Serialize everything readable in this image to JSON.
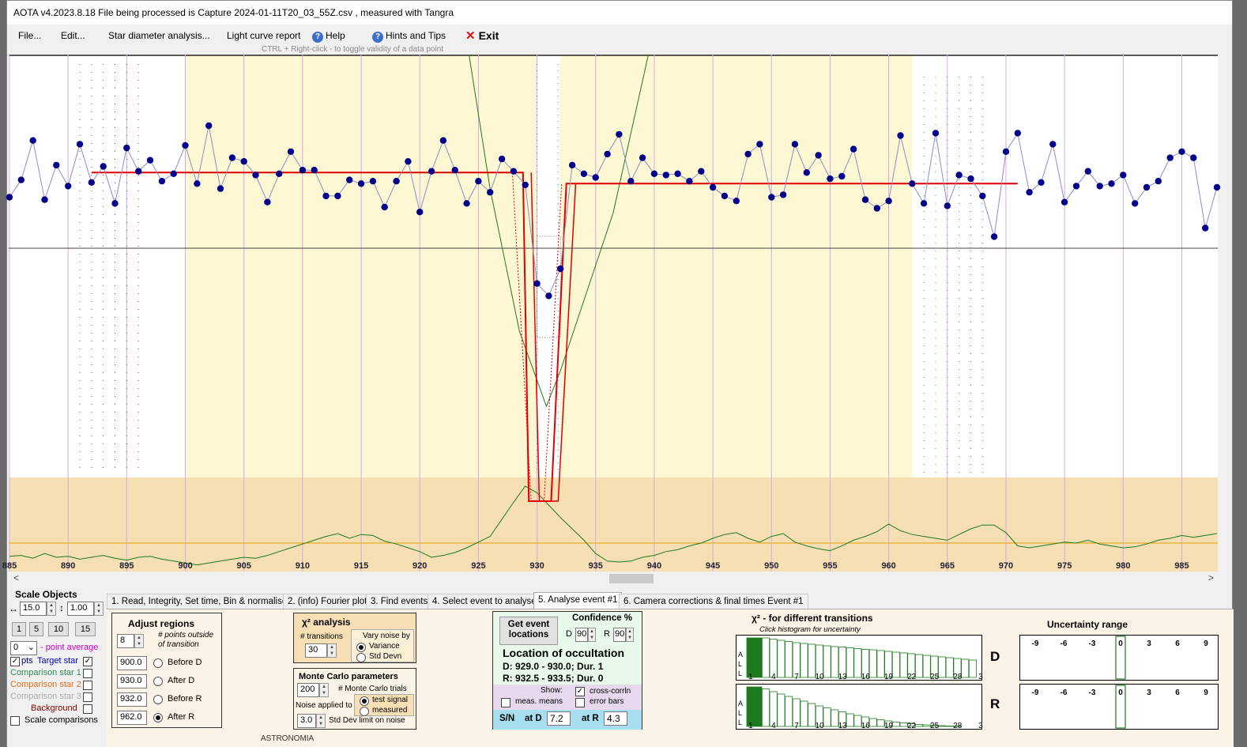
{
  "window": {
    "title": "AOTA v4.2023.8.18    File being processed is  Capture 2024-01-11T20_03_55Z.csv ,  measured with Tangra"
  },
  "menu": {
    "file": "File...",
    "edit": "Edit...",
    "star_diameter": "Star diameter analysis...",
    "light_curve": "Light curve report",
    "help": "Help",
    "hints": "Hints and Tips",
    "exit": "Exit"
  },
  "hint_text": "CTRL + Right-click   -   to toggle validity of a data point",
  "chart_data": {
    "type": "line",
    "x_ticks": [
      "885",
      "890",
      "895",
      "900",
      "905",
      "910",
      "915",
      "920",
      "925",
      "930",
      "935",
      "940",
      "945",
      "950",
      "955",
      "960",
      "965",
      "970",
      "975",
      "980",
      "985"
    ],
    "xlim": [
      885,
      988
    ],
    "y_normalized": true,
    "series": [
      {
        "name": "Target star",
        "color": "#00008b",
        "x": [
          885,
          886,
          887,
          888,
          889,
          890,
          891,
          892,
          893,
          894,
          895,
          896,
          897,
          898,
          899,
          900,
          901,
          902,
          903,
          904,
          905,
          906,
          907,
          908,
          909,
          910,
          911,
          912,
          913,
          914,
          915,
          916,
          917,
          918,
          919,
          920,
          921,
          922,
          923,
          924,
          925,
          926,
          927,
          928,
          929,
          930,
          931,
          932,
          933,
          934,
          935,
          936,
          937,
          938,
          939,
          940,
          941,
          942,
          943,
          944,
          945,
          946,
          947,
          948,
          949,
          950,
          951,
          952,
          953,
          954,
          955,
          956,
          957,
          958,
          959,
          960,
          961,
          962,
          963,
          964,
          965,
          966,
          967,
          968,
          969,
          970,
          971,
          972,
          973,
          974,
          975,
          976,
          977,
          978,
          979,
          980,
          981,
          982,
          983,
          984,
          985,
          986,
          987,
          988
        ],
        "y": [
          0.42,
          0.56,
          0.88,
          0.4,
          0.68,
          0.51,
          0.85,
          0.54,
          0.67,
          0.37,
          0.82,
          0.63,
          0.72,
          0.55,
          0.61,
          0.84,
          0.53,
          1.0,
          0.49,
          0.74,
          0.71,
          0.6,
          0.38,
          0.61,
          0.79,
          0.64,
          0.64,
          0.43,
          0.43,
          0.56,
          0.53,
          0.55,
          0.34,
          0.55,
          0.71,
          0.3,
          0.63,
          0.88,
          0.64,
          0.37,
          0.55,
          0.46,
          0.73,
          0.63,
          0.52,
          -0.28,
          -0.38,
          -0.16,
          0.68,
          0.61,
          0.58,
          0.77,
          0.93,
          0.55,
          0.74,
          0.61,
          0.6,
          0.61,
          0.55,
          0.63,
          0.5,
          0.43,
          0.39,
          0.77,
          0.85,
          0.42,
          0.44,
          0.85,
          0.62,
          0.76,
          0.57,
          0.59,
          0.81,
          0.4,
          0.33,
          0.39,
          0.92,
          0.53,
          0.37,
          0.94,
          0.35,
          0.6,
          0.57,
          0.43,
          0.1,
          0.79,
          0.94,
          0.46,
          0.54,
          0.85,
          0.38,
          0.51,
          0.63,
          0.51,
          0.53,
          0.6,
          0.37,
          0.5,
          0.55,
          0.74,
          0.79,
          0.74,
          0.17,
          0.5
        ]
      }
    ],
    "model_fit": {
      "baseline": 0.62,
      "event_level": -0.3,
      "after_level": 0.53
    },
    "chi2_curve": {
      "color": "#1e7a1e",
      "x": [
        885,
        886,
        887,
        888,
        889,
        890,
        891,
        892,
        893,
        894,
        895,
        896,
        897,
        898,
        899,
        900,
        901,
        902,
        903,
        904,
        905,
        906,
        907,
        908,
        909,
        910,
        911,
        912,
        913,
        914,
        915,
        916,
        917,
        918,
        919,
        920,
        921,
        922,
        923,
        924,
        925,
        926,
        927,
        928,
        929,
        930,
        931,
        932,
        933,
        934,
        935,
        936,
        937,
        938,
        939,
        940,
        941,
        942,
        943,
        944,
        945,
        946,
        947,
        948,
        949,
        950,
        951,
        952,
        953,
        954,
        955,
        956,
        957,
        958,
        959,
        960,
        961,
        962,
        963,
        964,
        965,
        966,
        967,
        968,
        969,
        970,
        971,
        972,
        973,
        974,
        975,
        976,
        977,
        978,
        979,
        980,
        981,
        982,
        983,
        984,
        985,
        986,
        987,
        988
      ],
      "y": [
        0.11,
        0.12,
        0.09,
        0.14,
        0.1,
        0.11,
        0.08,
        0.1,
        0.12,
        0.09,
        0.07,
        0.1,
        0.11,
        0.08,
        0.06,
        0.04,
        0.02,
        0.04,
        0.06,
        0.08,
        0.1,
        0.09,
        0.12,
        0.16,
        0.2,
        0.24,
        0.28,
        0.32,
        0.35,
        0.3,
        0.34,
        0.33,
        0.27,
        0.24,
        0.2,
        0.16,
        0.1,
        0.12,
        0.15,
        0.2,
        0.26,
        0.32,
        0.5,
        0.68,
        0.85,
        0.78,
        0.65,
        0.52,
        0.4,
        0.28,
        0.14,
        0.06,
        0.05,
        0.06,
        0.1,
        0.12,
        0.16,
        0.18,
        0.22,
        0.25,
        0.3,
        0.34,
        0.36,
        0.3,
        0.26,
        0.32,
        0.35,
        0.26,
        0.22,
        0.19,
        0.17,
        0.22,
        0.28,
        0.32,
        0.37,
        0.45,
        0.38,
        0.34,
        0.32,
        0.3,
        0.28,
        0.34,
        0.4,
        0.44,
        0.44,
        0.36,
        0.22,
        0.2,
        0.22,
        0.24,
        0.26,
        0.25,
        0.28,
        0.24,
        0.22,
        0.2,
        0.21,
        0.24,
        0.28,
        0.3,
        0.33,
        0.31,
        0.33,
        0.35
      ]
    },
    "chi2_baseline": 0.25
  },
  "left_panel": {
    "scale_objects": "Scale  Objects",
    "scale_x": "15.0",
    "scale_y": "1.00",
    "zoom_buttons": [
      "1",
      "5",
      "10",
      "15"
    ],
    "point_avg_value": "0",
    "point_avg_label": "- point average",
    "pts_label": "pts",
    "target_star": "Target star",
    "comparison1": "Comparison star 1",
    "comparison2": "Comparison star 2",
    "comparison3": "Comparison star 3",
    "background": "Background",
    "scale_comparisons": "Scale comparisons"
  },
  "tabs": [
    "1.  Read, Integrity, Set time, Bin & normalise",
    "2. (info)  Fourier plot",
    "3. Find events",
    "4. Select event to analyse",
    "5. Analyse event #1",
    "6. Camera corrections & final times Event #1"
  ],
  "adjust_regions": {
    "title": "Adjust regions",
    "points_value": "8",
    "points_label": "# points outside of transition",
    "before_d": {
      "value": "900.0",
      "label": "Before D"
    },
    "after_d": {
      "value": "930.0",
      "label": "After D"
    },
    "before_r": {
      "value": "932.0",
      "label": "Before R"
    },
    "after_r": {
      "value": "962.0",
      "label": "After R"
    }
  },
  "chi2_analysis": {
    "title": "χ² analysis",
    "transitions_label": "# transitions",
    "transitions_value": "30",
    "vary_noise": "Vary noise by",
    "variance": "Variance",
    "std_devn": "Std Devn"
  },
  "monte_carlo": {
    "title": "Monte Carlo parameters",
    "trials_value": "200",
    "trials_label": "# Monte Carlo trials",
    "noise_applied": "Noise applied to",
    "test_signal": "test signal",
    "measured": "measured",
    "std_dev_value": "3.0",
    "std_dev_label": "Std Dev limit on noise"
  },
  "location": {
    "get_event_btn": "Get event locations",
    "confidence": "Confidence %",
    "d_label": "D",
    "d_value": "90",
    "r_label": "R",
    "r_value": "90",
    "title": "Location of occultation",
    "d_line": "D: 929.0 - 930.0; Dur. 1",
    "r_line": "R: 932.5 - 933.5; Dur. 0",
    "show": "Show:",
    "cross_corr": "cross-corrln",
    "meas_means": "meas. means",
    "error_bars": "error bars",
    "sn": "S/N",
    "at_d": "at D",
    "at_d_value": "7.2",
    "at_r": "at R",
    "at_r_value": "4.3"
  },
  "chi2_transitions": {
    "title": "χ² -  for different transitions",
    "subtitle": "Click histogram for uncertainty",
    "x_ticks": [
      "1",
      "4",
      "7",
      "10",
      "13",
      "16",
      "19",
      "22",
      "25",
      "28",
      "3"
    ],
    "all_label": [
      "A",
      "L",
      "L"
    ],
    "d_label": "D",
    "r_label": "R",
    "d_heights": [
      1.0,
      1.0,
      1.0,
      0.97,
      0.94,
      0.91,
      0.88,
      0.86,
      0.84,
      0.82,
      0.8,
      0.78,
      0.77,
      0.75,
      0.73,
      0.71,
      0.7,
      0.68,
      0.66,
      0.64,
      0.62,
      0.6,
      0.58,
      0.56,
      0.54,
      0.52,
      0.5,
      0.48,
      0.46,
      0.44
    ],
    "r_heights": [
      1.0,
      1.0,
      0.95,
      0.88,
      0.82,
      0.76,
      0.7,
      0.64,
      0.58,
      0.52,
      0.47,
      0.42,
      0.37,
      0.32,
      0.28,
      0.24,
      0.2,
      0.17,
      0.14,
      0.11,
      0.09,
      0.07,
      0.05,
      0.04,
      0.03,
      0.02,
      0.01,
      0.01,
      0.0,
      0.0
    ]
  },
  "uncertainty": {
    "title": "Uncertainty range",
    "ticks": [
      "-9",
      "-6",
      "-3",
      "0",
      "3",
      "6",
      "9"
    ]
  },
  "below_text": "ASTRONOMIA",
  "colors": {
    "plot_white": "#ffffff",
    "plot_yellow": "#fdf8d3",
    "plot_tan": "#f5dfb3",
    "model_red": "#e00000",
    "data_blue": "#00008b",
    "line_blue": "#8c8cc8"
  }
}
